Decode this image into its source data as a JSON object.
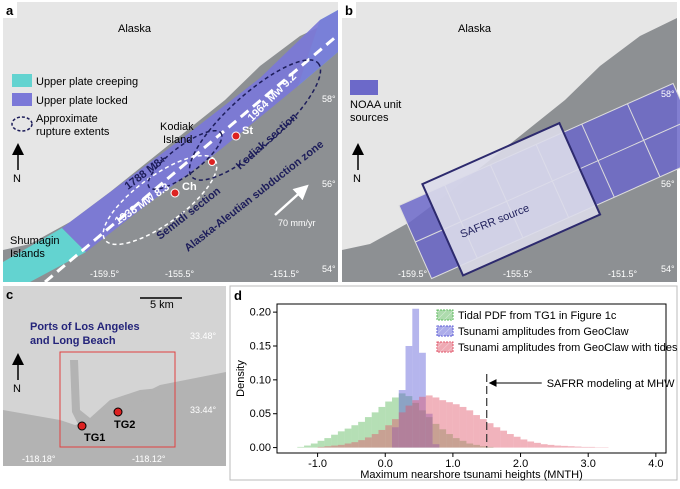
{
  "panel_a": {
    "label": "a",
    "region": "Alaska",
    "legend": {
      "creeping": "Upper plate creeping",
      "locked": "Upper plate locked",
      "rupture": [
        "Approximate",
        "rupture extents"
      ]
    },
    "kodiak": [
      "Kodiak",
      "Island"
    ],
    "events": {
      "e1788": "1788 M8+",
      "e1964": "1964 Mw 9.2",
      "e1938": "1938 Mw 8.3"
    },
    "stations": {
      "ch": "Ch",
      "st": "St"
    },
    "sections": {
      "semidi": "Semidi section",
      "kodiak": "Kodiak section"
    },
    "zone": "Alaska-Aleutian subduction zone",
    "rate": "70 mm/yr",
    "shumagin": [
      "Shumagin",
      "Islands"
    ],
    "north": "N",
    "lon_ticks": [
      "-159.5°",
      "-155.5°",
      "-151.5°"
    ],
    "lat_ticks": [
      "58°",
      "56°",
      "54°"
    ]
  },
  "panel_b": {
    "label": "b",
    "region": "Alaska",
    "legend": [
      "NOAA unit",
      "sources"
    ],
    "source": "SAFRR source",
    "north": "N",
    "lon_ticks": [
      "-159.5°",
      "-155.5°",
      "-151.5°"
    ],
    "lat_ticks": [
      "58°",
      "56°",
      "54°"
    ]
  },
  "panel_c": {
    "label": "c",
    "scale": "5 km",
    "title": [
      "Ports of Los Angeles",
      "and Long Beach"
    ],
    "lat_ticks": [
      "33.48°",
      "33.44°"
    ],
    "lon_ticks": [
      "-118.18°",
      "-118.12°"
    ],
    "gauges": [
      "TG1",
      "TG2"
    ],
    "north": "N"
  },
  "chart_data": {
    "type": "histogram",
    "label": "d",
    "xlabel": "Maximum nearshore tsunami heights (MNTH)",
    "ylabel": "Density",
    "bins": [
      -1.4,
      -1.3,
      -1.2,
      -1.1,
      -1.0,
      -0.9,
      -0.8,
      -0.7,
      -0.6,
      -0.5,
      -0.4,
      -0.3,
      -0.2,
      -0.1,
      0.0,
      0.1,
      0.2,
      0.3,
      0.4,
      0.5,
      0.6,
      0.7,
      0.8,
      0.9,
      1.0,
      1.1,
      1.2,
      1.3,
      1.4,
      1.5,
      1.6,
      1.7,
      1.8,
      1.9,
      2.0,
      2.1,
      2.2,
      2.3,
      2.4,
      2.5,
      2.6,
      2.7,
      2.8,
      2.9,
      3.0,
      3.1,
      3.2,
      3.3,
      3.4
    ],
    "series": [
      {
        "name": "Tidal PDF from TG1 in Figure 1c",
        "color": "#5cb85c",
        "values": [
          0,
          0.001,
          0.003,
          0.006,
          0.01,
          0.014,
          0.019,
          0.024,
          0.028,
          0.033,
          0.038,
          0.045,
          0.052,
          0.06,
          0.068,
          0.074,
          0.08,
          0.076,
          0.066,
          0.055,
          0.045,
          0.035,
          0.027,
          0.02,
          0.014,
          0.01,
          0.006,
          0.004,
          0.002,
          0.001,
          0,
          0,
          0,
          0,
          0,
          0,
          0,
          0,
          0,
          0,
          0,
          0,
          0,
          0,
          0,
          0,
          0,
          0
        ]
      },
      {
        "name": "Tsunami amplitudes from GeoClaw",
        "color": "#5b5bd6",
        "values": [
          0,
          0,
          0,
          0,
          0,
          0,
          0,
          0,
          0,
          0,
          0,
          0,
          0,
          0,
          0,
          0.03,
          0.085,
          0.15,
          0.205,
          0.14,
          0.05,
          0.005,
          0,
          0,
          0,
          0,
          0,
          0,
          0,
          0,
          0,
          0,
          0,
          0,
          0,
          0,
          0,
          0,
          0,
          0,
          0,
          0,
          0,
          0,
          0,
          0,
          0,
          0
        ]
      },
      {
        "name": "Tsunami amplitudes from GeoClaw with tides",
        "color": "#e0566a",
        "values": [
          0,
          0,
          0,
          0,
          0.001,
          0.002,
          0.003,
          0.004,
          0.006,
          0.008,
          0.011,
          0.015,
          0.02,
          0.026,
          0.033,
          0.042,
          0.052,
          0.062,
          0.07,
          0.075,
          0.077,
          0.074,
          0.07,
          0.067,
          0.064,
          0.06,
          0.055,
          0.048,
          0.042,
          0.036,
          0.03,
          0.025,
          0.02,
          0.016,
          0.012,
          0.009,
          0.007,
          0.005,
          0.004,
          0.003,
          0.0025,
          0.002,
          0.0015,
          0.001,
          0.001,
          0.0005,
          0.0005,
          0
        ]
      }
    ],
    "xlim": [
      -1.6,
      4.15
    ],
    "ylim": [
      -0.008,
      0.212
    ],
    "xticks": [
      {
        "value": -1,
        "label": "-1.0"
      },
      {
        "value": 0,
        "label": "0.0"
      },
      {
        "value": 1,
        "label": "1.0"
      },
      {
        "value": 2,
        "label": "2.0"
      },
      {
        "value": 3,
        "label": "3.0"
      },
      {
        "value": 4,
        "label": "4.0"
      }
    ],
    "yticks": [
      {
        "value": 0,
        "label": "0.00"
      },
      {
        "value": 0.05,
        "label": "0.05"
      },
      {
        "value": 0.1,
        "label": "0.10"
      },
      {
        "value": 0.15,
        "label": "0.15"
      },
      {
        "value": 0.2,
        "label": "0.20"
      }
    ],
    "annotations": [
      {
        "text": "SAFRR modeling at MHW",
        "x": 1.5
      }
    ]
  }
}
